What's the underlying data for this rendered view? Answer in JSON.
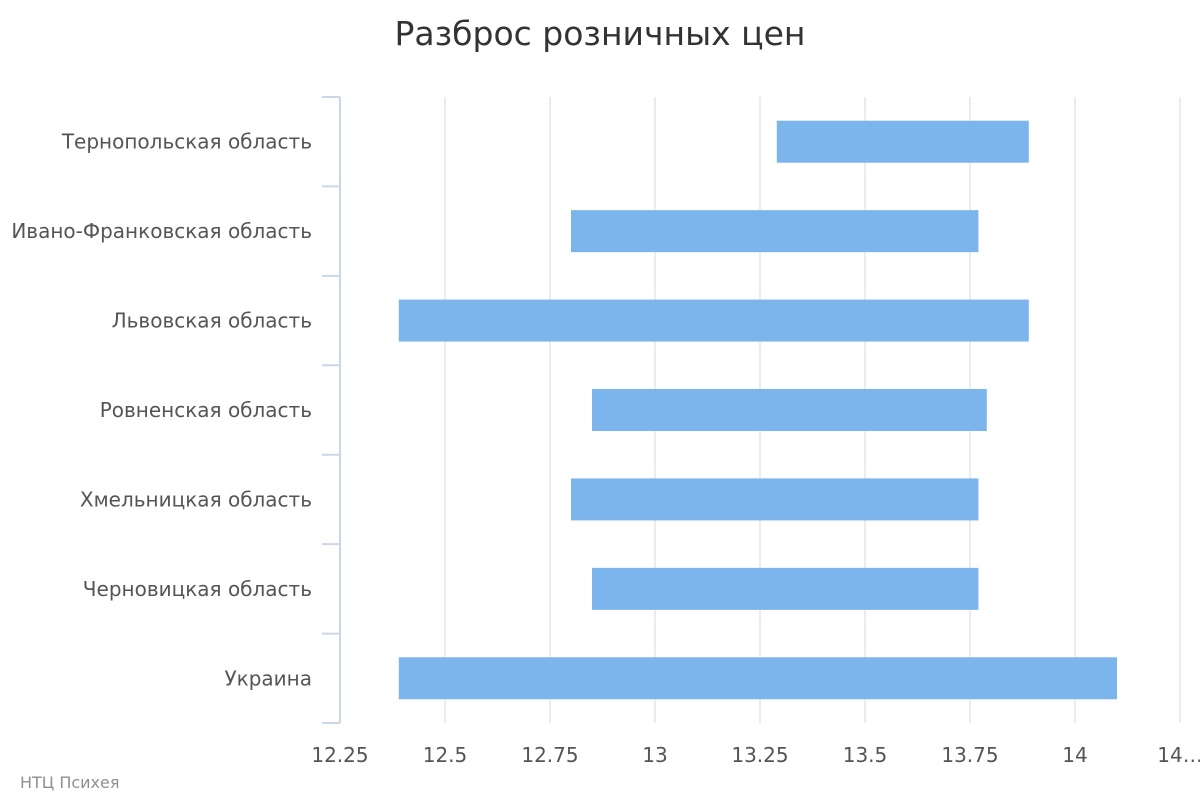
{
  "chart_data": {
    "type": "bar",
    "orientation": "horizontal",
    "subtype": "range",
    "title": "Разброс розничных цен",
    "xlabel": "",
    "ylabel": "",
    "categories": [
      "Тернопольская область",
      "Ивано-Франковская область",
      "Львовская область",
      "Ровненская область",
      "Хмельницкая область",
      "Черновицкая область",
      "Украина"
    ],
    "ranges": [
      [
        13.29,
        13.89
      ],
      [
        12.8,
        13.77
      ],
      [
        12.39,
        13.89
      ],
      [
        12.85,
        13.79
      ],
      [
        12.8,
        13.77
      ],
      [
        12.85,
        13.77
      ],
      [
        12.39,
        14.1
      ]
    ],
    "xlim": [
      12.25,
      14.25
    ],
    "ticks": [
      12.25,
      12.5,
      12.75,
      13,
      13.25,
      13.5,
      13.75,
      14,
      14.25
    ],
    "tick_labels": [
      "12.25",
      "12.5",
      "12.75",
      "13",
      "13.25",
      "13.5",
      "13.75",
      "14",
      "14…"
    ],
    "grid": true,
    "legend": "none",
    "bar_color": "#7cb5ec",
    "grid_color": "#e6e6e6",
    "axis_color": "#ccd6eb"
  },
  "credits": "НТЦ Психея"
}
